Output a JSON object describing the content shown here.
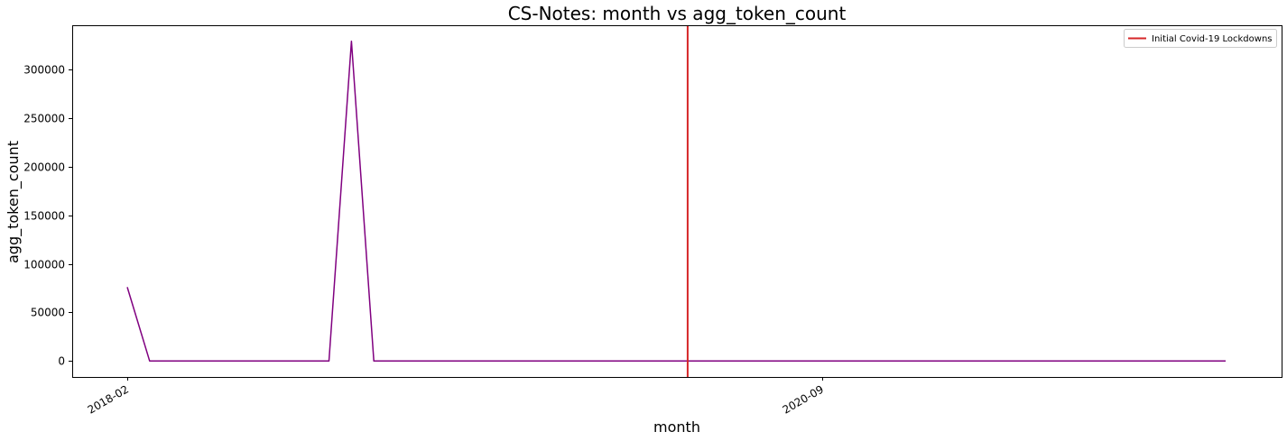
{
  "chart_data": {
    "type": "line",
    "title": "CS-Notes: month vs agg_token_count",
    "xlabel": "month",
    "ylabel": "agg_token_count",
    "x": [
      "2018-02",
      "2018-03",
      "2018-04",
      "2018-05",
      "2018-06",
      "2018-07",
      "2018-08",
      "2018-09",
      "2018-10",
      "2018-11",
      "2018-12",
      "2019-01",
      "2019-02",
      "2019-03",
      "2019-04",
      "2019-05",
      "2019-06",
      "2019-07",
      "2019-08",
      "2019-09",
      "2019-10",
      "2019-11",
      "2019-12",
      "2020-01",
      "2020-02",
      "2020-03",
      "2020-04",
      "2020-05",
      "2020-06",
      "2020-07",
      "2020-08",
      "2020-09",
      "2020-10",
      "2020-11",
      "2020-12",
      "2021-01",
      "2021-02",
      "2021-03",
      "2021-04",
      "2021-05",
      "2021-06",
      "2021-07",
      "2021-08",
      "2021-09",
      "2021-10",
      "2021-11",
      "2021-12",
      "2022-01",
      "2022-02",
      "2022-03"
    ],
    "series": [
      {
        "color": "#800080",
        "values": [
          76000,
          0,
          0,
          0,
          0,
          0,
          0,
          0,
          0,
          0,
          329000,
          0,
          0,
          0,
          0,
          0,
          0,
          0,
          0,
          0,
          0,
          0,
          0,
          0,
          0,
          0,
          0,
          0,
          0,
          0,
          0,
          0,
          0,
          0,
          0,
          0,
          0,
          0,
          0,
          0,
          0,
          0,
          0,
          0,
          0,
          0,
          0,
          0,
          0,
          0
        ]
      }
    ],
    "vline": {
      "x": "2020-03",
      "label": "Initial Covid-19 Lockdowns",
      "color": "#d62728"
    },
    "xticks": [
      "2018-02",
      "2020-09"
    ],
    "yticks": [
      0,
      50000,
      100000,
      150000,
      200000,
      250000,
      300000
    ],
    "ylim": [
      -16450,
      345450
    ],
    "grid": false,
    "legend_position": "top-right"
  }
}
